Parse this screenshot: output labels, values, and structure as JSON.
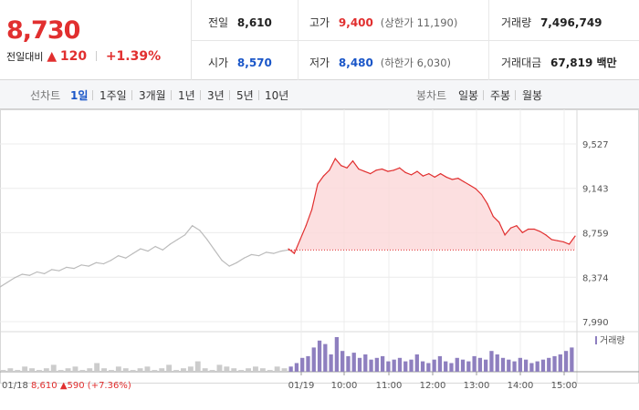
{
  "quote": {
    "price": "8,730",
    "change_label": "전일대비",
    "change_arrow": "▲",
    "change_value": "120",
    "change_percent": "+1.39%",
    "prev_close": {
      "label": "전일",
      "value": "8,610"
    },
    "open": {
      "label": "시가",
      "value": "8,570"
    },
    "high": {
      "label": "고가",
      "value": "9,400",
      "sub": "(상한가 11,190)"
    },
    "low": {
      "label": "저가",
      "value": "8,480",
      "sub": "(하한가 6,030)"
    },
    "volume": {
      "label": "거래량",
      "value": "7,496,749"
    },
    "turnover": {
      "label": "거래대금",
      "value": "67,819 백만"
    }
  },
  "tabs": {
    "line_header": "선차트",
    "line_items": [
      "1일",
      "1주일",
      "3개월",
      "1년",
      "3년",
      "5년",
      "10년"
    ],
    "active_index": 0,
    "candle_header": "봉차트",
    "candle_items": [
      "일봉",
      "주봉",
      "월봉"
    ]
  },
  "colors": {
    "up": "#e12f2f",
    "down": "#1a56c8",
    "prev_line": "#bbbbbb",
    "volume": "#8e7fbf"
  },
  "chart_data": {
    "type": "line",
    "title": "",
    "ylim": [
      7990,
      9527
    ],
    "y_ticks": [
      "9,527",
      "9,143",
      "8,759",
      "8,374",
      "7,990"
    ],
    "y_tick_values": [
      9527,
      9143,
      8759,
      8374,
      7990
    ],
    "x_ticks": [
      "01/19",
      "10:00",
      "11:00",
      "12:00",
      "13:00",
      "14:00",
      "15:00"
    ],
    "grid": true,
    "baseline": 8610,
    "prev_day": {
      "label": "01/18",
      "close": "8,610",
      "change_arrow": "▲",
      "change": "590",
      "change_percent": "(+7.36%)",
      "values": [
        8290,
        8330,
        8370,
        8400,
        8390,
        8420,
        8405,
        8440,
        8430,
        8460,
        8450,
        8480,
        8470,
        8500,
        8490,
        8520,
        8560,
        8540,
        8580,
        8620,
        8600,
        8640,
        8610,
        8660,
        8700,
        8740,
        8820,
        8780,
        8700,
        8610,
        8520,
        8470,
        8500,
        8540,
        8570,
        8560,
        8590,
        8580,
        8600,
        8610
      ]
    },
    "today": {
      "values": [
        8620,
        8580,
        8700,
        8820,
        8960,
        9180,
        9250,
        9300,
        9400,
        9340,
        9320,
        9380,
        9310,
        9290,
        9270,
        9300,
        9310,
        9290,
        9300,
        9320,
        9280,
        9260,
        9290,
        9250,
        9270,
        9240,
        9270,
        9240,
        9220,
        9230,
        9200,
        9170,
        9140,
        9090,
        9010,
        8900,
        8850,
        8740,
        8800,
        8820,
        8760,
        8790,
        8790,
        8770,
        8740,
        8700,
        8690,
        8680,
        8660,
        8730
      ]
    },
    "volume_label": "거래량",
    "volume_prev": [
      1,
      2,
      1,
      3,
      2,
      1,
      2,
      4,
      1,
      2,
      3,
      1,
      2,
      5,
      2,
      1,
      3,
      2,
      1,
      2,
      3,
      1,
      2,
      4,
      1,
      2,
      3,
      6,
      2,
      1,
      4,
      3,
      2,
      1,
      2,
      3,
      2,
      1,
      3,
      2
    ],
    "volume_today": [
      3,
      5,
      8,
      9,
      14,
      18,
      16,
      10,
      20,
      12,
      9,
      11,
      8,
      10,
      7,
      8,
      9,
      6,
      7,
      8,
      6,
      7,
      10,
      6,
      5,
      7,
      9,
      6,
      5,
      8,
      7,
      6,
      9,
      8,
      7,
      12,
      10,
      8,
      7,
      6,
      8,
      7,
      5,
      6,
      7,
      8,
      9,
      10,
      12,
      14
    ]
  }
}
